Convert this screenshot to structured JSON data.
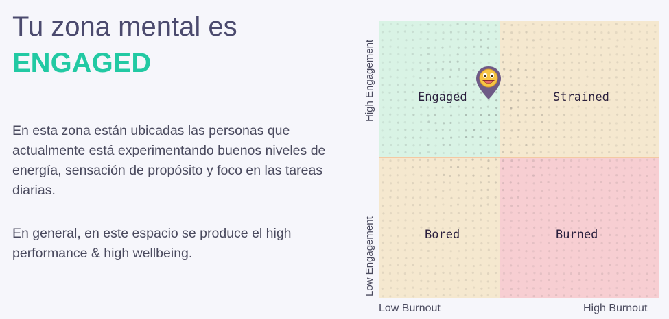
{
  "heading": {
    "title": "Tu zona mental es",
    "zone": "ENGAGED"
  },
  "description": {
    "paragraph1": "En esta zona están ubicadas las personas que actualmente está experimentando buenos niveles de energía, sensación de propósito y foco en las tareas diarias.",
    "paragraph2": "En general, en este espacio se produce el high performance & high wellbeing."
  },
  "chart": {
    "quadrants": {
      "engaged": "Engaged",
      "strained": "Strained",
      "bored": "Bored",
      "burned": "Burned"
    },
    "axes": {
      "x_low": "Low Burnout",
      "x_high": "High Burnout",
      "y_high": "High Engagement",
      "y_low": "Low Engagement"
    },
    "marker": {
      "icon": "smiley-location-pin-icon",
      "quadrant": "Engaged"
    }
  },
  "colors": {
    "title": "#4b4a6e",
    "accent": "#22c9a3",
    "engaged": "#d9f3e5",
    "strained": "#f5e8cf",
    "bored": "#f5e8cf",
    "burned": "#f7ced2",
    "pin": "#6e5a86",
    "smiley": "#f6c544"
  }
}
